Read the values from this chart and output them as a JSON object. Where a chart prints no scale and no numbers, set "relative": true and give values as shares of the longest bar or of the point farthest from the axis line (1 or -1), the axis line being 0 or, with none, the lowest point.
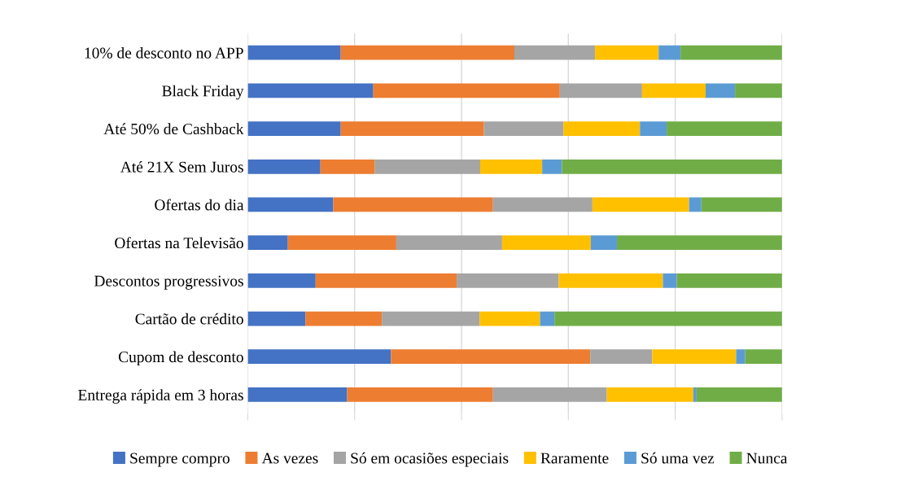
{
  "chart_data": {
    "type": "bar",
    "orientation": "horizontal",
    "stacked": true,
    "relative": true,
    "grid": "x",
    "legend": "bottom",
    "categories": [
      "10% de desconto no APP",
      "Black Friday",
      "Até 50% de Cashback",
      "Até 21X Sem Juros",
      "Ofertas do dia",
      "Ofertas na Televisão",
      "Descontos progressivos",
      "Cartão de crédito",
      "Cupom de desconto",
      "Entrega rápida em 3 horas"
    ],
    "series": [
      {
        "name": "Sempre compro",
        "color": "#4472c4",
        "values": [
          0.174,
          0.235,
          0.174,
          0.136,
          0.16,
          0.075,
          0.127,
          0.108,
          0.268,
          0.186
        ]
      },
      {
        "name": "As vezes",
        "color": "#ed7d31",
        "values": [
          0.325,
          0.349,
          0.268,
          0.102,
          0.299,
          0.203,
          0.264,
          0.143,
          0.373,
          0.273
        ]
      },
      {
        "name": "Só em ocasiões especiais",
        "color": "#a5a5a5",
        "values": [
          0.151,
          0.154,
          0.149,
          0.197,
          0.186,
          0.198,
          0.191,
          0.183,
          0.116,
          0.213
        ]
      },
      {
        "name": "Raramente",
        "color": "#ffc000",
        "values": [
          0.119,
          0.119,
          0.143,
          0.116,
          0.181,
          0.166,
          0.195,
          0.113,
          0.157,
          0.162
        ]
      },
      {
        "name": "Só uma vez",
        "color": "#5b9bd5",
        "values": [
          0.041,
          0.055,
          0.05,
          0.037,
          0.023,
          0.049,
          0.026,
          0.027,
          0.017,
          0.006
        ]
      },
      {
        "name": "Nunca",
        "color": "#70ad47",
        "values": [
          0.19,
          0.088,
          0.216,
          0.412,
          0.151,
          0.309,
          0.197,
          0.426,
          0.069,
          0.16
        ]
      }
    ]
  }
}
